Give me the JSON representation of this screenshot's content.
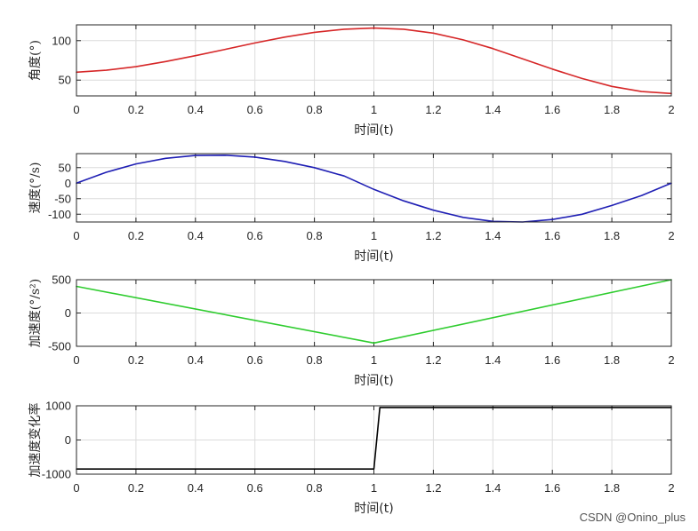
{
  "watermark": "CSDN @Onino_plus",
  "chart_data": [
    {
      "type": "line",
      "xlabel": "时间(t)",
      "ylabel": "角度(°)",
      "xlim": [
        0,
        2
      ],
      "ylim": [
        30,
        120
      ],
      "xticks": [
        "0",
        "0.2",
        "0.4",
        "0.6",
        "0.8",
        "1",
        "1.2",
        "1.4",
        "1.6",
        "1.8",
        "2"
      ],
      "yticks": [
        50,
        100
      ],
      "yticklabels": [
        "50",
        "100"
      ],
      "grid": true,
      "color": "#d62728",
      "series": [
        {
          "x": [
            0,
            0.1,
            0.2,
            0.3,
            0.4,
            0.5,
            0.6,
            0.7,
            0.8,
            0.9,
            1.0,
            1.1,
            1.2,
            1.3,
            1.4,
            1.5,
            1.6,
            1.7,
            1.8,
            1.9,
            2.0
          ],
          "y": [
            60,
            62.5,
            67,
            73.5,
            81,
            89,
            97,
            104.5,
            110.5,
            114.5,
            116,
            114.5,
            109.5,
            101,
            90,
            77,
            64,
            52,
            42,
            35.5,
            33
          ]
        }
      ]
    },
    {
      "type": "line",
      "xlabel": "时间(t)",
      "ylabel": "速度(°/s)",
      "xlim": [
        0,
        2
      ],
      "ylim": [
        -125,
        95
      ],
      "xticks": [
        "0",
        "0.2",
        "0.4",
        "0.6",
        "0.8",
        "1",
        "1.2",
        "1.4",
        "1.6",
        "1.8",
        "2"
      ],
      "yticks": [
        50,
        0,
        -50,
        -100
      ],
      "yticklabels": [
        "50",
        "0",
        "-50",
        "-100"
      ],
      "grid": true,
      "color": "#1f1fb4",
      "series": [
        {
          "x": [
            0,
            0.1,
            0.2,
            0.3,
            0.4,
            0.5,
            0.6,
            0.7,
            0.8,
            0.9,
            1.0,
            1.1,
            1.2,
            1.3,
            1.4,
            1.5,
            1.6,
            1.7,
            1.8,
            1.9,
            2.0
          ],
          "y": [
            0,
            35,
            62,
            80,
            89,
            90,
            84,
            70,
            50,
            23,
            -20,
            -57,
            -87,
            -110,
            -123,
            -125,
            -117,
            -100,
            -72,
            -40,
            0
          ]
        }
      ]
    },
    {
      "type": "line",
      "xlabel": "时间(t)",
      "ylabel": "加速度(°/s²)",
      "xlim": [
        0,
        2
      ],
      "ylim": [
        -500,
        500
      ],
      "xticks": [
        "0",
        "0.2",
        "0.4",
        "0.6",
        "0.8",
        "1",
        "1.2",
        "1.4",
        "1.6",
        "1.8",
        "2"
      ],
      "yticks": [
        500,
        0,
        -500
      ],
      "yticklabels": [
        "500",
        "0",
        "-500"
      ],
      "grid": true,
      "color": "#2ecc2e",
      "series": [
        {
          "x": [
            0,
            1,
            2
          ],
          "y": [
            400,
            -450,
            500
          ]
        }
      ]
    },
    {
      "type": "line",
      "xlabel": "时间(t)",
      "ylabel": "加速度变化率",
      "xlim": [
        0,
        2
      ],
      "ylim": [
        -1000,
        1000
      ],
      "xticks": [
        "0",
        "0.2",
        "0.4",
        "0.6",
        "0.8",
        "1",
        "1.2",
        "1.4",
        "1.6",
        "1.8",
        "2"
      ],
      "yticks": [
        1000,
        0,
        -1000
      ],
      "yticklabels": [
        "1000",
        "0",
        "-1000"
      ],
      "grid": true,
      "color": "#000000",
      "series": [
        {
          "x": [
            0,
            1,
            1.02,
            2
          ],
          "y": [
            -850,
            -850,
            950,
            950
          ]
        }
      ]
    }
  ]
}
